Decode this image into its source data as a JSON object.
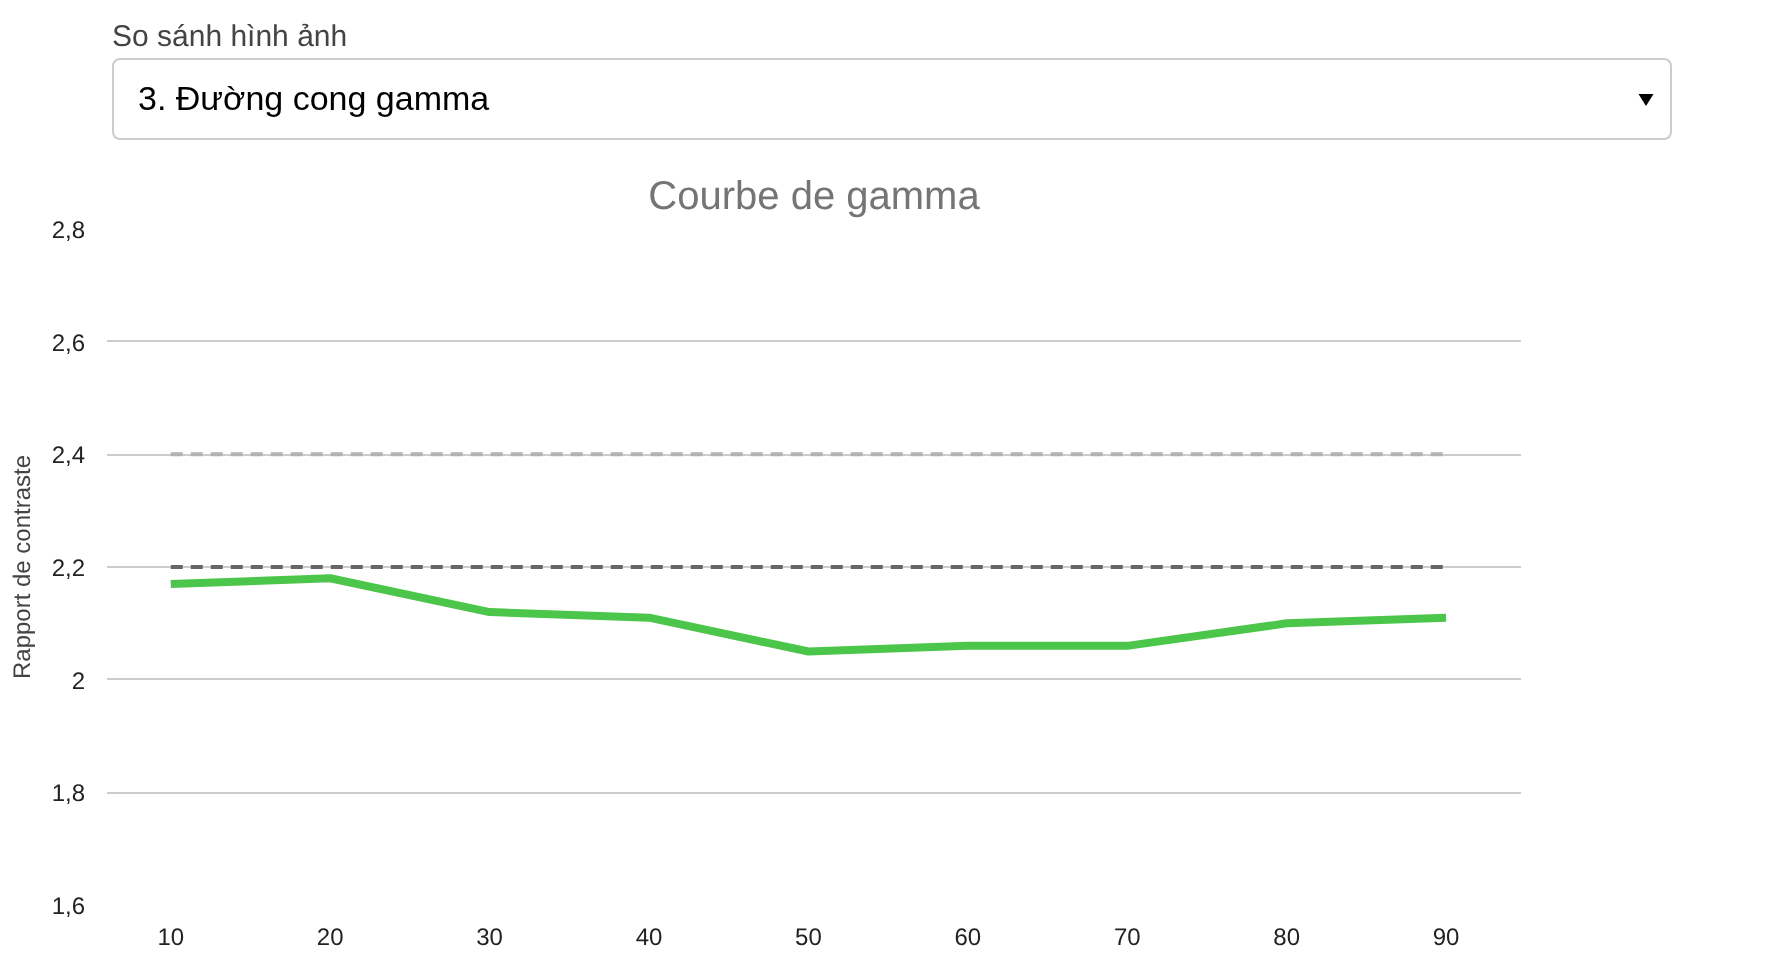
{
  "chart_data": {
    "type": "line",
    "title": "Courbe de gamma",
    "ylabel": "Rapport de contraste",
    "annotations": [
      "So sánh hình ảnh",
      "3. Đường cong gamma"
    ],
    "x": [
      10,
      20,
      30,
      40,
      50,
      60,
      70,
      80,
      90
    ],
    "series": [
      {
        "color": "#b3b3b3",
        "line_style": "dashed",
        "values": [
          2.4,
          2.4,
          2.4,
          2.4,
          2.4,
          2.4,
          2.4,
          2.4,
          2.4
        ]
      },
      {
        "color": "#666666",
        "line_style": "dashed",
        "values": [
          2.2,
          2.2,
          2.2,
          2.2,
          2.2,
          2.2,
          2.2,
          2.2,
          2.2
        ]
      },
      {
        "color": "#4cc64a",
        "line_style": "solid",
        "values": [
          2.17,
          2.18,
          2.12,
          2.11,
          2.05,
          2.06,
          2.06,
          2.1,
          2.11
        ]
      }
    ],
    "xlim": [
      6,
      94.7
    ],
    "ylim": [
      1.6,
      2.8
    ],
    "xticks": [
      10,
      20,
      30,
      40,
      50,
      60,
      70,
      80,
      90
    ],
    "yticks": [
      {
        "value": 1.6,
        "label": "1,6"
      },
      {
        "value": 1.8,
        "label": "1,8"
      },
      {
        "value": 2.0,
        "label": "2"
      },
      {
        "value": 2.2,
        "label": "2,2"
      },
      {
        "value": 2.4,
        "label": "2,4"
      },
      {
        "value": 2.6,
        "label": "2,6"
      },
      {
        "value": 2.8,
        "label": "2,8"
      }
    ],
    "grid": "y"
  }
}
